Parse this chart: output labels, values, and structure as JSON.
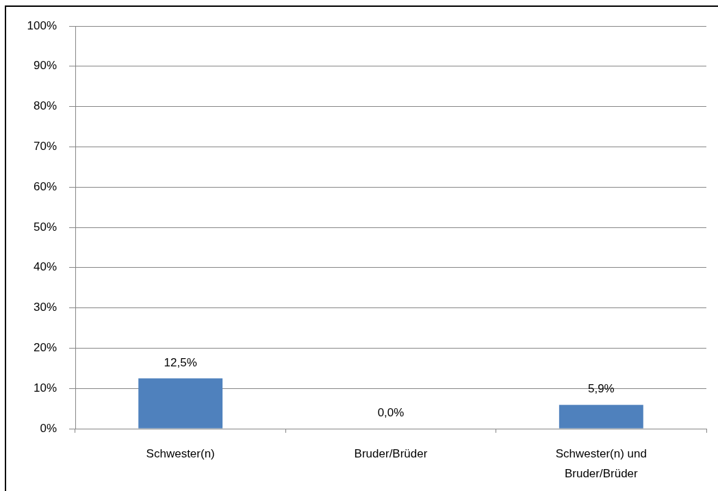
{
  "chart_data": {
    "type": "bar",
    "categories": [
      "Schwester(n)",
      "Bruder/Brüder",
      "Schwester(n) und Bruder/Brüder"
    ],
    "values": [
      12.5,
      0.0,
      5.9
    ],
    "value_labels": [
      "12,5%",
      "0,0%",
      "5,9%"
    ],
    "color": "#4f81bd",
    "ylim": [
      0,
      100
    ],
    "yticks": [
      {
        "value": 0,
        "label": "0%"
      },
      {
        "value": 10,
        "label": "10%"
      },
      {
        "value": 20,
        "label": "20%"
      },
      {
        "value": 30,
        "label": "30%"
      },
      {
        "value": 40,
        "label": "40%"
      },
      {
        "value": 50,
        "label": "50%"
      },
      {
        "value": 60,
        "label": "60%"
      },
      {
        "value": 70,
        "label": "70%"
      },
      {
        "value": 80,
        "label": "80%"
      },
      {
        "value": 90,
        "label": "90%"
      },
      {
        "value": 100,
        "label": "100%"
      }
    ],
    "grid": "y",
    "legend": false
  }
}
